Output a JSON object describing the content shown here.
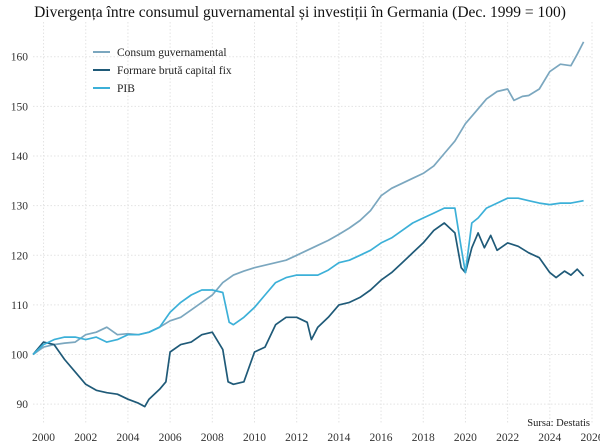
{
  "chart_data": {
    "type": "line",
    "title": "Divergența între consumul guvernamental și investiții în Germania (Dec. 1999 = 100)",
    "xlim": [
      1999.5,
      2026
    ],
    "ylim": [
      86,
      167
    ],
    "x_ticks": [
      "2000",
      "2002",
      "2004",
      "2006",
      "2008",
      "2010",
      "2012",
      "2014",
      "2016",
      "2018",
      "2020",
      "2022",
      "2024",
      "2026"
    ],
    "y_ticks": [
      "90",
      "100",
      "110",
      "120",
      "130",
      "140",
      "150",
      "160"
    ],
    "grid": true,
    "legend_position": "top-left",
    "source": "Sursa: Destatis",
    "series": [
      {
        "name": "Consum guvernamental",
        "color": "#7ba7bf",
        "points": [
          [
            1999.5,
            100.0
          ],
          [
            2000.0,
            101.5
          ],
          [
            2000.5,
            102.0
          ],
          [
            2001.0,
            102.3
          ],
          [
            2001.5,
            102.5
          ],
          [
            2002.0,
            104.0
          ],
          [
            2002.5,
            104.5
          ],
          [
            2003.0,
            105.5
          ],
          [
            2003.5,
            104.0
          ],
          [
            2004.0,
            104.2
          ],
          [
            2004.5,
            104.0
          ],
          [
            2005.0,
            104.5
          ],
          [
            2005.5,
            105.5
          ],
          [
            2006.0,
            106.8
          ],
          [
            2006.5,
            107.5
          ],
          [
            2007.0,
            109.0
          ],
          [
            2007.5,
            110.5
          ],
          [
            2008.0,
            112.0
          ],
          [
            2008.5,
            114.5
          ],
          [
            2009.0,
            116.0
          ],
          [
            2009.5,
            116.8
          ],
          [
            2010.0,
            117.5
          ],
          [
            2010.5,
            118.0
          ],
          [
            2011.0,
            118.5
          ],
          [
            2011.5,
            119.0
          ],
          [
            2012.0,
            120.0
          ],
          [
            2012.5,
            121.0
          ],
          [
            2013.0,
            122.0
          ],
          [
            2013.5,
            123.0
          ],
          [
            2014.0,
            124.2
          ],
          [
            2014.5,
            125.5
          ],
          [
            2015.0,
            127.0
          ],
          [
            2015.5,
            129.0
          ],
          [
            2016.0,
            132.0
          ],
          [
            2016.5,
            133.5
          ],
          [
            2017.0,
            134.5
          ],
          [
            2017.5,
            135.5
          ],
          [
            2018.0,
            136.5
          ],
          [
            2018.5,
            138.0
          ],
          [
            2019.0,
            140.5
          ],
          [
            2019.5,
            143.0
          ],
          [
            2020.0,
            146.5
          ],
          [
            2020.5,
            149.0
          ],
          [
            2021.0,
            151.5
          ],
          [
            2021.5,
            153.0
          ],
          [
            2022.0,
            153.5
          ],
          [
            2022.3,
            151.2
          ],
          [
            2022.7,
            152.0
          ],
          [
            2023.0,
            152.2
          ],
          [
            2023.5,
            153.5
          ],
          [
            2024.0,
            157.0
          ],
          [
            2024.5,
            158.5
          ],
          [
            2025.0,
            158.2
          ],
          [
            2025.3,
            160.5
          ],
          [
            2025.6,
            163.0
          ]
        ]
      },
      {
        "name": "Formare brută capital fix",
        "color": "#1f5a78",
        "points": [
          [
            1999.5,
            100.0
          ],
          [
            2000.0,
            102.5
          ],
          [
            2000.5,
            102.0
          ],
          [
            2001.0,
            99.0
          ],
          [
            2001.5,
            96.5
          ],
          [
            2002.0,
            94.0
          ],
          [
            2002.5,
            92.8
          ],
          [
            2003.0,
            92.3
          ],
          [
            2003.5,
            92.0
          ],
          [
            2004.0,
            91.0
          ],
          [
            2004.5,
            90.2
          ],
          [
            2004.8,
            89.5
          ],
          [
            2005.0,
            91.0
          ],
          [
            2005.5,
            93.0
          ],
          [
            2005.8,
            94.5
          ],
          [
            2006.0,
            100.5
          ],
          [
            2006.5,
            102.0
          ],
          [
            2007.0,
            102.5
          ],
          [
            2007.5,
            104.0
          ],
          [
            2008.0,
            104.5
          ],
          [
            2008.5,
            101.0
          ],
          [
            2008.75,
            94.5
          ],
          [
            2009.0,
            94.0
          ],
          [
            2009.5,
            94.5
          ],
          [
            2010.0,
            100.5
          ],
          [
            2010.5,
            101.5
          ],
          [
            2011.0,
            106.0
          ],
          [
            2011.5,
            107.5
          ],
          [
            2012.0,
            107.5
          ],
          [
            2012.5,
            106.5
          ],
          [
            2012.7,
            103.0
          ],
          [
            2013.0,
            105.5
          ],
          [
            2013.5,
            107.5
          ],
          [
            2014.0,
            110.0
          ],
          [
            2014.5,
            110.5
          ],
          [
            2015.0,
            111.5
          ],
          [
            2015.5,
            113.0
          ],
          [
            2016.0,
            115.0
          ],
          [
            2016.5,
            116.5
          ],
          [
            2017.0,
            118.5
          ],
          [
            2017.5,
            120.5
          ],
          [
            2018.0,
            122.5
          ],
          [
            2018.5,
            125.0
          ],
          [
            2019.0,
            126.5
          ],
          [
            2019.5,
            124.5
          ],
          [
            2019.8,
            117.5
          ],
          [
            2020.0,
            116.5
          ],
          [
            2020.3,
            121.5
          ],
          [
            2020.6,
            124.5
          ],
          [
            2020.9,
            121.5
          ],
          [
            2021.2,
            124.0
          ],
          [
            2021.5,
            121.0
          ],
          [
            2022.0,
            122.5
          ],
          [
            2022.5,
            121.8
          ],
          [
            2023.0,
            120.5
          ],
          [
            2023.5,
            119.5
          ],
          [
            2024.0,
            116.5
          ],
          [
            2024.3,
            115.5
          ],
          [
            2024.7,
            116.8
          ],
          [
            2025.0,
            116.0
          ],
          [
            2025.3,
            117.2
          ],
          [
            2025.6,
            115.8
          ]
        ]
      },
      {
        "name": "PIB",
        "color": "#3cb0d8",
        "points": [
          [
            1999.5,
            100.0
          ],
          [
            2000.0,
            102.0
          ],
          [
            2000.5,
            103.0
          ],
          [
            2001.0,
            103.5
          ],
          [
            2001.5,
            103.5
          ],
          [
            2002.0,
            103.0
          ],
          [
            2002.5,
            103.5
          ],
          [
            2003.0,
            102.5
          ],
          [
            2003.5,
            103.0
          ],
          [
            2004.0,
            104.0
          ],
          [
            2004.5,
            104.0
          ],
          [
            2005.0,
            104.5
          ],
          [
            2005.5,
            105.5
          ],
          [
            2006.0,
            108.5
          ],
          [
            2006.5,
            110.5
          ],
          [
            2007.0,
            112.0
          ],
          [
            2007.5,
            113.0
          ],
          [
            2008.0,
            113.0
          ],
          [
            2008.5,
            112.5
          ],
          [
            2008.8,
            106.5
          ],
          [
            2009.0,
            106.0
          ],
          [
            2009.5,
            107.5
          ],
          [
            2010.0,
            109.5
          ],
          [
            2010.5,
            112.0
          ],
          [
            2011.0,
            114.5
          ],
          [
            2011.5,
            115.5
          ],
          [
            2012.0,
            116.0
          ],
          [
            2012.5,
            116.0
          ],
          [
            2013.0,
            116.0
          ],
          [
            2013.5,
            117.0
          ],
          [
            2014.0,
            118.5
          ],
          [
            2014.5,
            119.0
          ],
          [
            2015.0,
            120.0
          ],
          [
            2015.5,
            121.0
          ],
          [
            2016.0,
            122.5
          ],
          [
            2016.5,
            123.5
          ],
          [
            2017.0,
            125.0
          ],
          [
            2017.5,
            126.5
          ],
          [
            2018.0,
            127.5
          ],
          [
            2018.5,
            128.5
          ],
          [
            2019.0,
            129.5
          ],
          [
            2019.5,
            129.5
          ],
          [
            2019.8,
            121.5
          ],
          [
            2020.0,
            116.5
          ],
          [
            2020.3,
            126.5
          ],
          [
            2020.6,
            127.5
          ],
          [
            2021.0,
            129.5
          ],
          [
            2021.5,
            130.5
          ],
          [
            2022.0,
            131.5
          ],
          [
            2022.5,
            131.5
          ],
          [
            2023.0,
            131.0
          ],
          [
            2023.5,
            130.5
          ],
          [
            2024.0,
            130.2
          ],
          [
            2024.5,
            130.5
          ],
          [
            2025.0,
            130.5
          ],
          [
            2025.6,
            131.0
          ]
        ]
      }
    ]
  }
}
